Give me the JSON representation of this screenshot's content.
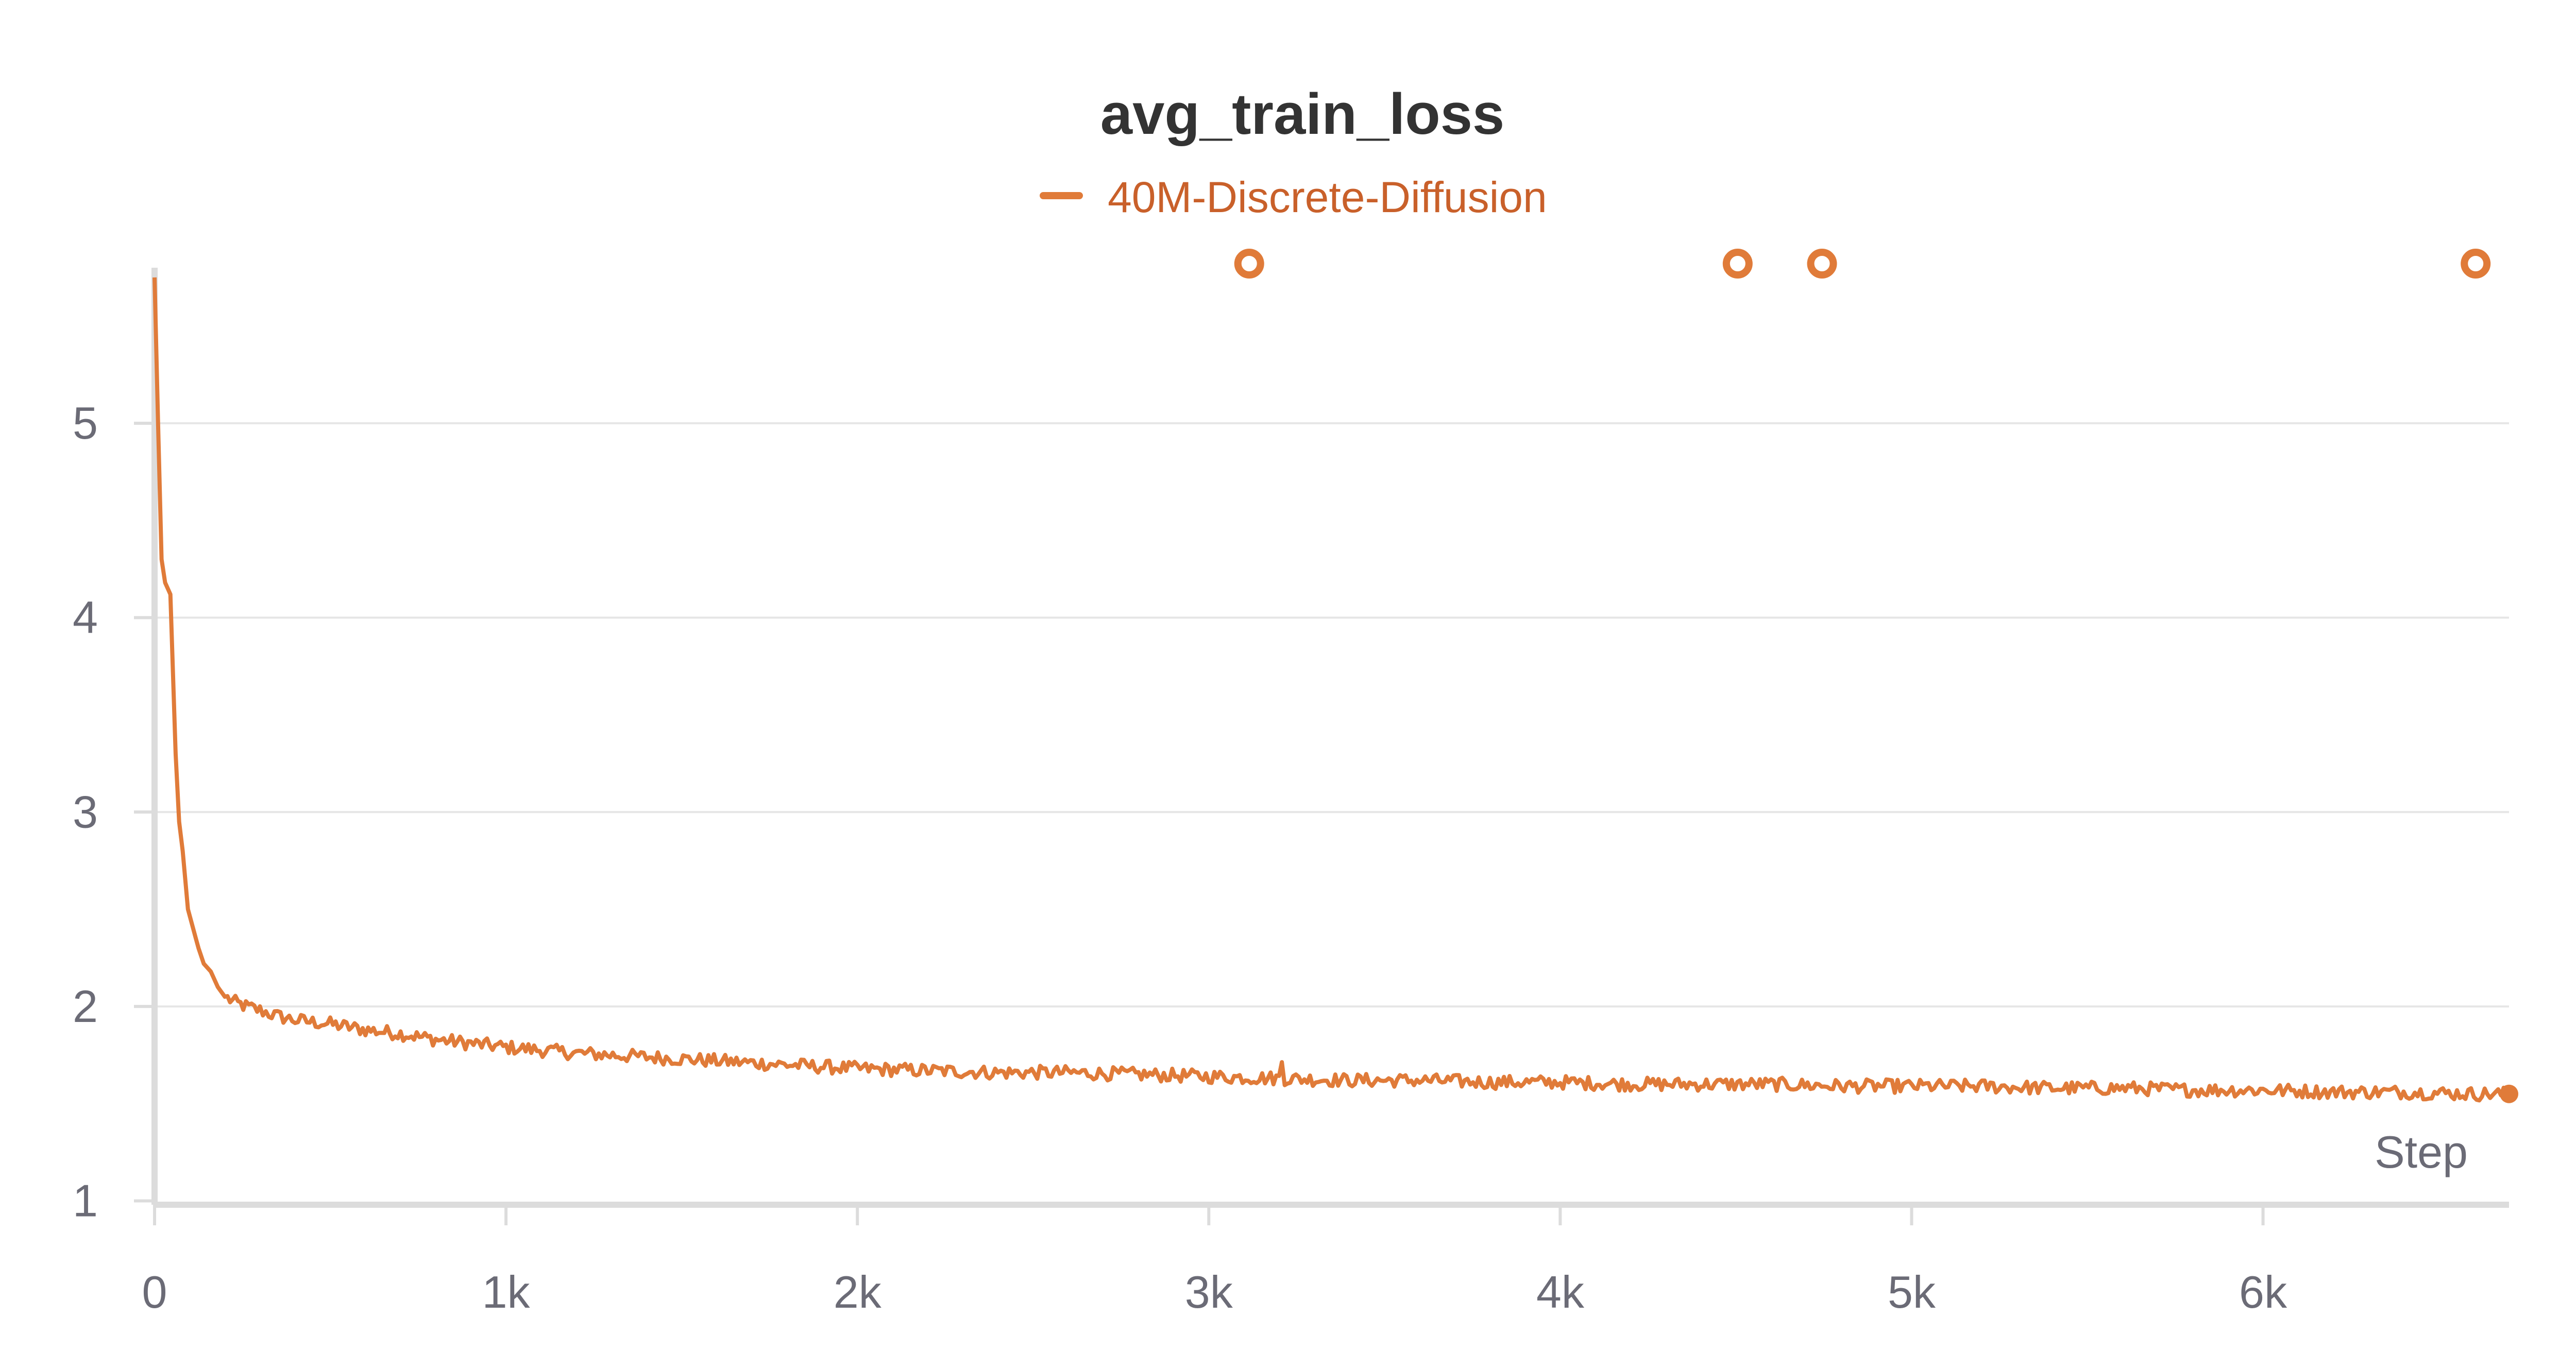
{
  "chart_data": {
    "type": "line",
    "title": "avg_train_loss",
    "xlabel": "Step",
    "ylabel": "",
    "xlim": [
      0,
      6700
    ],
    "ylim": [
      0.98,
      5.8
    ],
    "xticks": [
      0,
      1000,
      2000,
      3000,
      4000,
      5000,
      6000
    ],
    "xtick_labels": [
      "0",
      "1k",
      "2k",
      "3k",
      "4k",
      "5k",
      "6k"
    ],
    "yticks": [
      1,
      2,
      3,
      4,
      5
    ],
    "ytick_labels": [
      "1",
      "2",
      "3",
      "4",
      "5"
    ],
    "grid": true,
    "legend_position": "top-center",
    "series": [
      {
        "name": "40M-Discrete-Diffusion",
        "color": "#e07b39",
        "x": [
          0,
          10,
          20,
          30,
          45,
          60,
          70,
          80,
          95,
          110,
          125,
          140,
          160,
          180,
          200,
          230,
          260,
          300,
          350,
          400,
          450,
          500,
          600,
          700,
          800,
          900,
          1000,
          1200,
          1400,
          1600,
          1800,
          2000,
          2200,
          2400,
          2600,
          2800,
          3000,
          3200,
          3400,
          3600,
          3800,
          4000,
          4200,
          4400,
          4600,
          4800,
          5000,
          5200,
          5400,
          5600,
          5800,
          6000,
          6200,
          6400,
          6600,
          6700
        ],
        "y": [
          5.75,
          5.0,
          4.3,
          4.18,
          4.12,
          3.3,
          2.95,
          2.8,
          2.5,
          2.4,
          2.3,
          2.22,
          2.18,
          2.1,
          2.05,
          2.02,
          2.0,
          1.98,
          1.95,
          1.93,
          1.92,
          1.91,
          1.88,
          1.86,
          1.83,
          1.81,
          1.79,
          1.76,
          1.74,
          1.72,
          1.7,
          1.68,
          1.67,
          1.66,
          1.66,
          1.65,
          1.64,
          1.63,
          1.62,
          1.62,
          1.61,
          1.61,
          1.6,
          1.6,
          1.6,
          1.59,
          1.59,
          1.59,
          1.58,
          1.58,
          1.57,
          1.57,
          1.56,
          1.56,
          1.55,
          1.55
        ]
      }
    ],
    "outliers": [
      {
        "x": 3115,
        "y": 5.75
      },
      {
        "x": 4505,
        "y": 5.75
      },
      {
        "x": 4745,
        "y": 5.75
      },
      {
        "x": 6605,
        "y": 5.75
      }
    ]
  }
}
